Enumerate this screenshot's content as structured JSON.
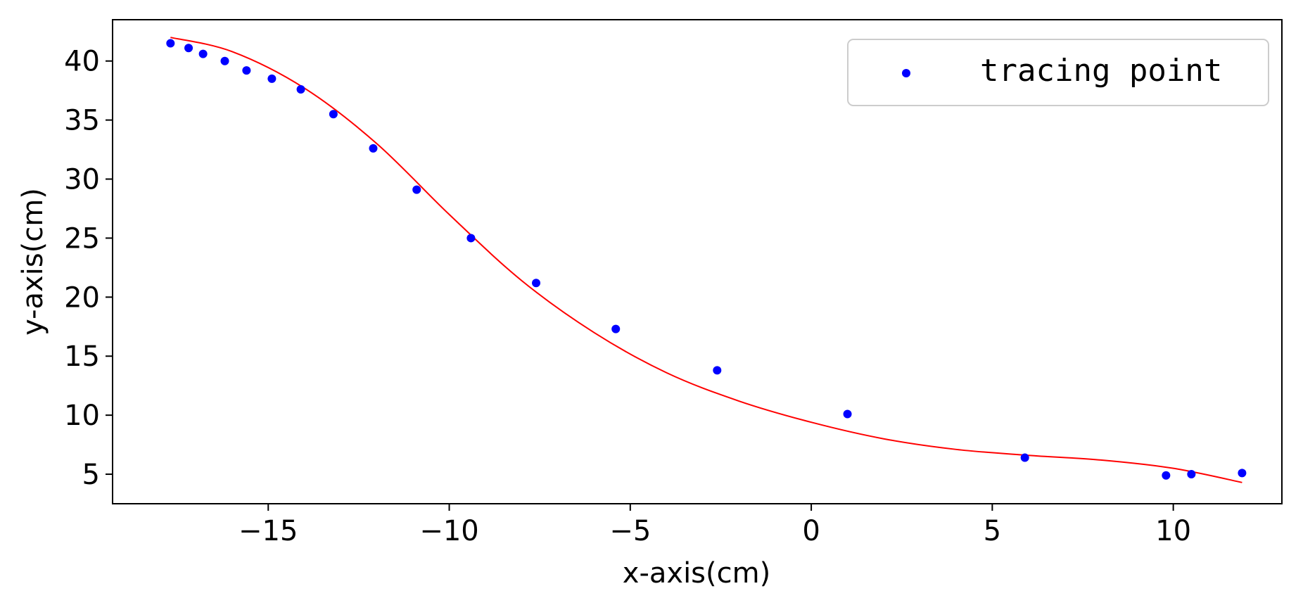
{
  "chart_data": {
    "type": "scatter",
    "title": "",
    "xlabel": "x-axis(cm)",
    "ylabel": "y-axis(cm)",
    "xlim": [
      -19.3,
      13.0
    ],
    "ylim": [
      2.5,
      43.5
    ],
    "xticks": [
      -15,
      -10,
      -5,
      0,
      5,
      10
    ],
    "yticks": [
      5,
      10,
      15,
      20,
      25,
      30,
      35,
      40
    ],
    "xtick_labels": [
      "−15",
      "−10",
      "−5",
      "0",
      "5",
      "10"
    ],
    "ytick_labels": [
      "5",
      "10",
      "15",
      "20",
      "25",
      "30",
      "35",
      "40"
    ],
    "grid": false,
    "legend": {
      "position": "top-right",
      "entries": [
        "tracing point"
      ]
    },
    "colors": {
      "points": "#0000ff",
      "fit_curve": "#ff0000"
    },
    "series": [
      {
        "name": "tracing point",
        "kind": "scatter",
        "x": [
          -17.7,
          -17.2,
          -16.8,
          -16.2,
          -15.6,
          -14.9,
          -14.1,
          -13.2,
          -12.1,
          -10.9,
          -9.4,
          -7.6,
          -5.4,
          -2.6,
          1.0,
          5.9,
          9.8,
          10.5,
          11.9
        ],
        "y": [
          41.5,
          41.1,
          40.6,
          40.0,
          39.2,
          38.5,
          37.6,
          35.5,
          32.6,
          29.1,
          25.0,
          21.2,
          17.3,
          13.8,
          10.1,
          6.4,
          4.9,
          5.0,
          5.1
        ]
      },
      {
        "kind": "line",
        "x": [
          -17.7,
          -16.0,
          -14.0,
          -12.0,
          -10.0,
          -8.0,
          -6.0,
          -4.0,
          -2.0,
          0.0,
          2.0,
          4.0,
          6.0,
          8.0,
          10.0,
          11.9
        ],
        "y": [
          42.0,
          40.8,
          37.7,
          33.0,
          27.0,
          21.4,
          17.0,
          13.6,
          11.2,
          9.4,
          8.0,
          7.1,
          6.6,
          6.2,
          5.5,
          4.3
        ]
      }
    ]
  }
}
